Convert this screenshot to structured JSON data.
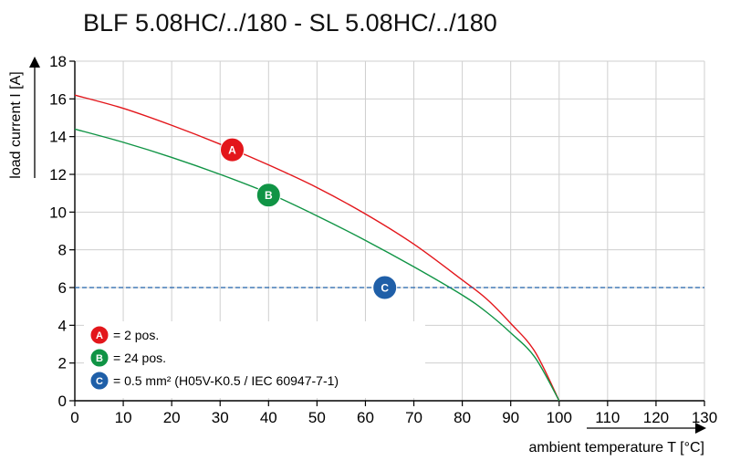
{
  "chart_data": {
    "type": "line",
    "title": "BLF 5.08HC/../180 - SL 5.08HC/../180",
    "xlabel": "ambient temperature T [°C]",
    "ylabel": "load current I [A]",
    "xlim": [
      0,
      130
    ],
    "ylim": [
      0,
      18
    ],
    "x_ticks": [
      "0",
      "10",
      "20",
      "30",
      "40",
      "50",
      "60",
      "70",
      "80",
      "90",
      "100",
      "110",
      "120",
      "130"
    ],
    "y_ticks": [
      "0",
      "2",
      "4",
      "6",
      "8",
      "10",
      "12",
      "14",
      "16",
      "18"
    ],
    "grid": true,
    "series": [
      {
        "marker": "A",
        "color": "#e3161b",
        "x": [
          0,
          10,
          20,
          30,
          40,
          50,
          60,
          70,
          80,
          85,
          90,
          95,
          100
        ],
        "y": [
          16.2,
          15.5,
          14.6,
          13.6,
          12.5,
          11.3,
          9.9,
          8.3,
          6.4,
          5.4,
          4.1,
          2.6,
          0
        ],
        "label_at": [
          32.5,
          13.3
        ]
      },
      {
        "marker": "B",
        "color": "#109445",
        "x": [
          0,
          10,
          20,
          30,
          40,
          50,
          60,
          70,
          80,
          85,
          90,
          95,
          100
        ],
        "y": [
          14.4,
          13.7,
          12.9,
          12.0,
          11.0,
          9.8,
          8.5,
          7.1,
          5.6,
          4.7,
          3.6,
          2.3,
          0
        ],
        "label_at": [
          40,
          10.9
        ]
      },
      {
        "marker": "C",
        "color": "#1f5fa8",
        "style": "dashed",
        "x": [
          0,
          130
        ],
        "y": [
          6,
          6
        ],
        "label_at": [
          64,
          6
        ]
      }
    ],
    "legend": {
      "position": "bottom-left",
      "items": [
        {
          "marker": "A",
          "text": "= 2 pos.",
          "color": "#e3161b"
        },
        {
          "marker": "B",
          "text": "= 24 pos.",
          "color": "#109445"
        },
        {
          "marker": "C",
          "text": "= 0.5 mm² (H05V-K0.5 / IEC 60947-7-1)",
          "color": "#1f5fa8"
        }
      ]
    }
  }
}
